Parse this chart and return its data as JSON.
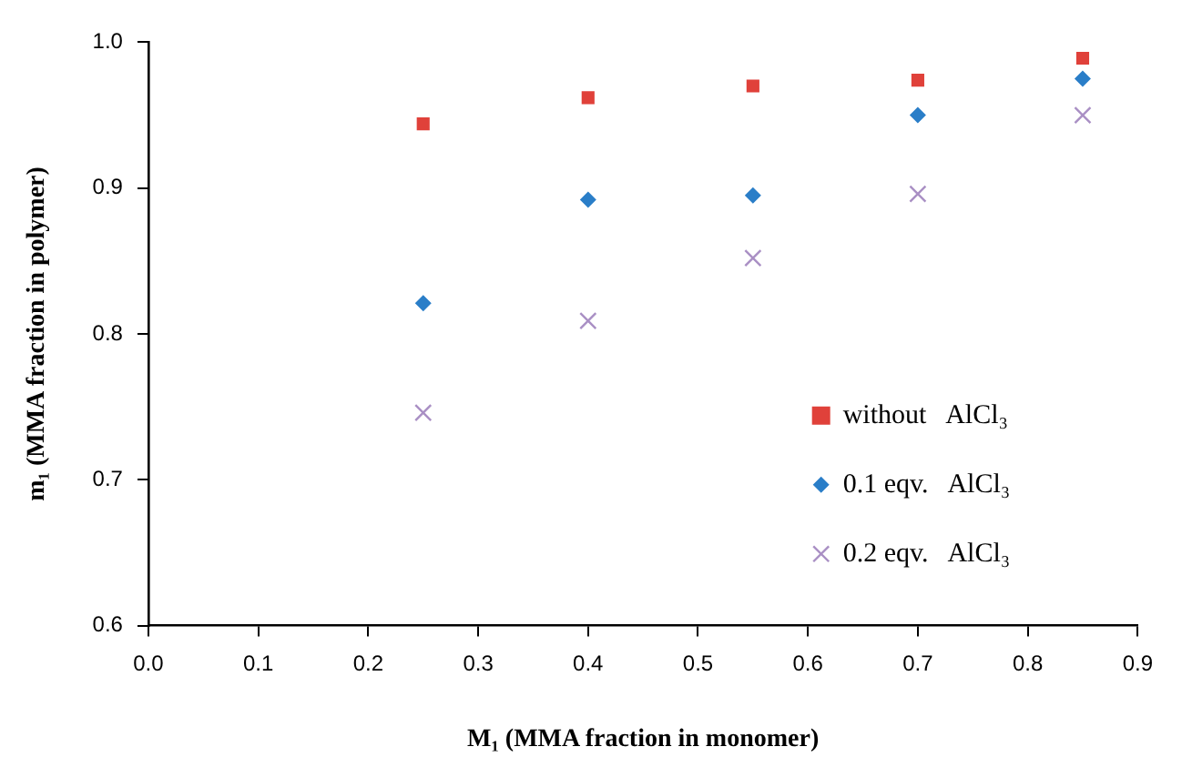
{
  "chart_data": {
    "type": "scatter",
    "xlabel": "M₁ (MMA fraction in monomer)",
    "ylabel": "m₁ (MMA fraction in polymer)",
    "xlim": [
      0,
      0.9
    ],
    "xticks": [
      {
        "value": 0,
        "label": "0.0"
      },
      0.1,
      0.2,
      0.3,
      0.4,
      0.5,
      0.6,
      0.7,
      0.8,
      0.9
    ],
    "ylim": [
      0.6,
      1.0
    ],
    "yticks": [
      0.6,
      0.7,
      0.8,
      0.9,
      {
        "value": 1,
        "label": "1.0"
      }
    ],
    "grid": false,
    "legend": "right",
    "x": [
      0.25,
      0.4,
      0.55,
      0.7,
      0.85
    ],
    "series": [
      {
        "name": "without   AlCl₃",
        "color": "#e0413a",
        "marker": "square",
        "values": [
          0.944,
          0.962,
          0.97,
          0.974,
          0.989
        ]
      },
      {
        "name": "0.1 eqv.   AlCl₃",
        "color": "#2a7ec8",
        "marker": "diamond",
        "values": [
          0.821,
          0.892,
          0.895,
          0.95,
          0.975
        ]
      },
      {
        "name": "0.2 eqv.   AlCl₃",
        "color": "#a98fc4",
        "marker": "cross",
        "values": [
          0.746,
          0.809,
          0.852,
          0.896,
          0.95
        ]
      }
    ]
  }
}
